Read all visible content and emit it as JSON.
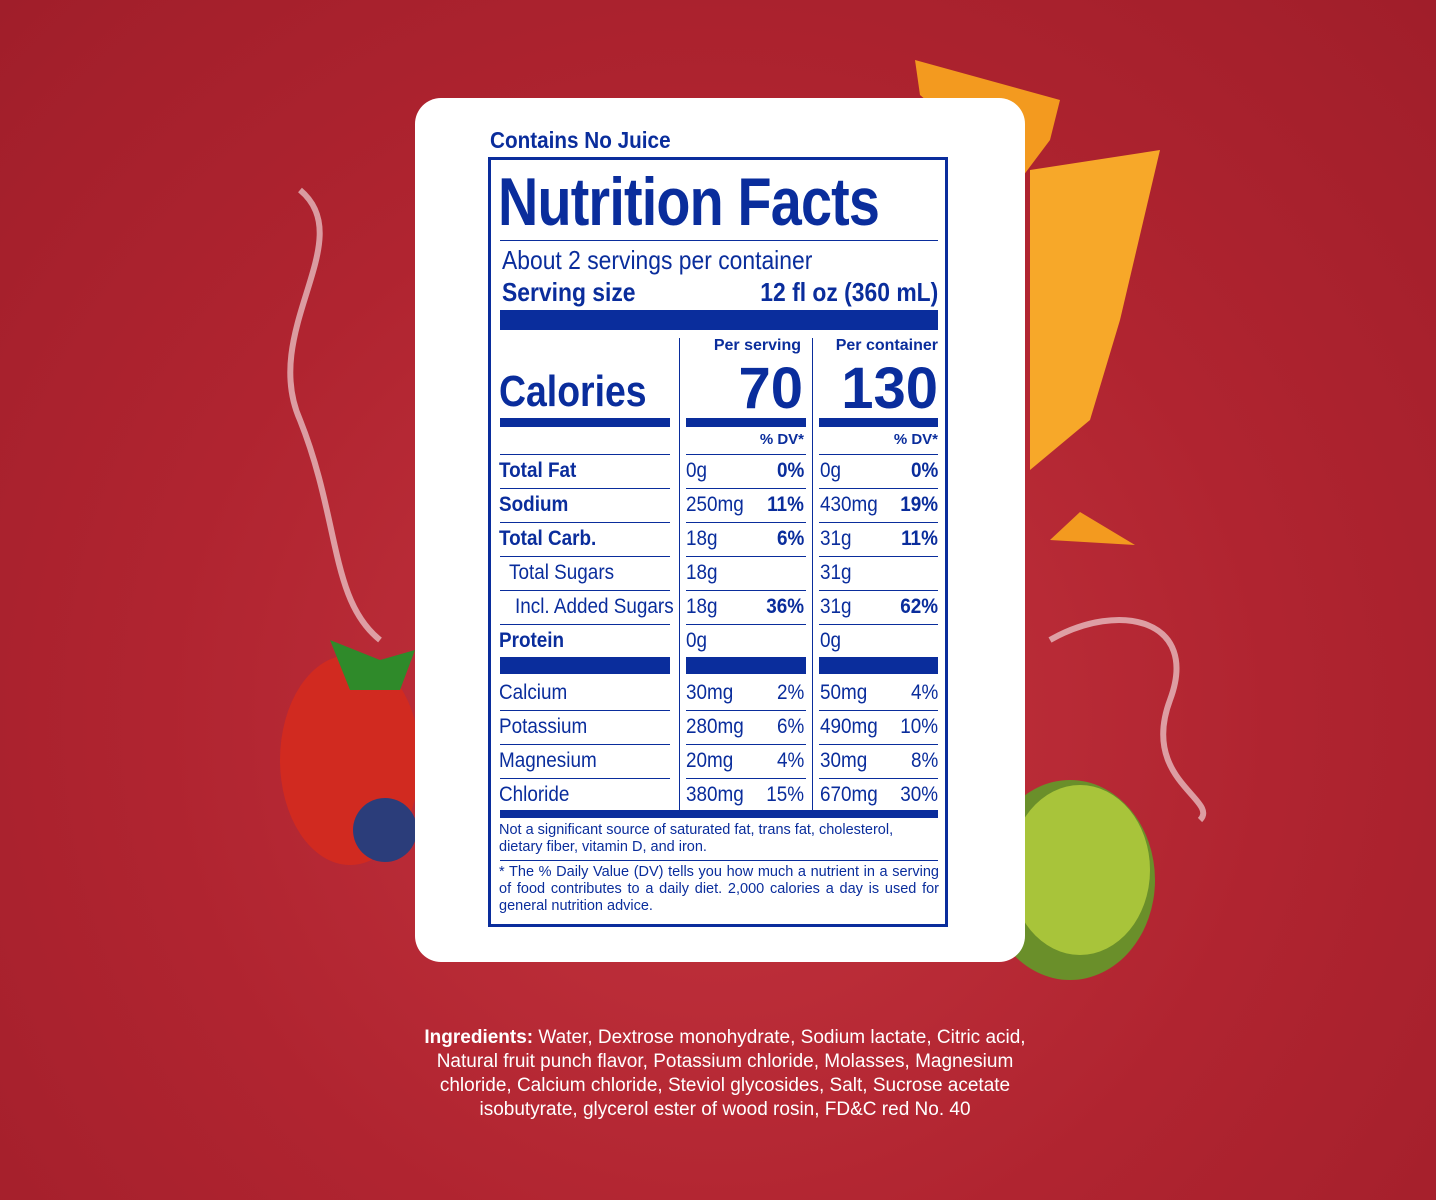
{
  "label": {
    "juice_note": "Contains No Juice",
    "title": "Nutrition Facts",
    "servings": "About 2 servings per container",
    "serving_size_label": "Serving size",
    "serving_size": "12 fl oz (360 mL)",
    "per_serving": "Per serving",
    "per_container": "Per container",
    "calories_label": "Calories",
    "calories_serving": "70",
    "calories_container": "130",
    "dv_header": "% DV*",
    "nutrients": [
      {
        "name": "Total Fat",
        "serving_amount": "0g",
        "serving_dv": "0%",
        "container_amount": "0g",
        "container_dv": "0%"
      },
      {
        "name": "Sodium",
        "serving_amount": "250mg",
        "serving_dv": "11%",
        "container_amount": "430mg",
        "container_dv": "19%"
      },
      {
        "name": "Total Carb.",
        "serving_amount": "18g",
        "serving_dv": "6%",
        "container_amount": "31g",
        "container_dv": "11%"
      },
      {
        "name": "Total Sugars",
        "serving_amount": "18g",
        "serving_dv": null,
        "container_amount": "31g",
        "container_dv": null
      },
      {
        "name": "Incl. Added Sugars",
        "serving_amount": "18g",
        "serving_dv": "36%",
        "container_amount": "31g",
        "container_dv": "62%"
      },
      {
        "name": "Protein",
        "serving_amount": "0g",
        "serving_dv": null,
        "container_amount": "0g",
        "container_dv": null
      }
    ],
    "minerals": [
      {
        "name": "Calcium",
        "serving_amount": "30mg",
        "serving_dv": "2%",
        "container_amount": "50mg",
        "container_dv": "4%"
      },
      {
        "name": "Potassium",
        "serving_amount": "280mg",
        "serving_dv": "6%",
        "container_amount": "490mg",
        "container_dv": "10%"
      },
      {
        "name": "Magnesium",
        "serving_amount": "20mg",
        "serving_dv": "4%",
        "container_amount": "30mg",
        "container_dv": "8%"
      },
      {
        "name": "Chloride",
        "serving_amount": "380mg",
        "serving_dv": "15%",
        "container_amount": "670mg",
        "container_dv": "30%"
      }
    ],
    "footnote_1": "Not a significant source of saturated fat, trans fat, cholesterol, dietary fiber, vitamin D, and iron.",
    "footnote_2": "* The % Daily Value (DV) tells you how much a nutrient in a serving of food contributes to a daily diet. 2,000 calories a day is used for general nutrition advice."
  },
  "ingredients": {
    "label": "Ingredients:",
    "text": "Water, Dextrose monohydrate, Sodium lactate, Citric acid, Natural fruit punch flavor, Potassium chloride, Molasses, Magnesium chloride, Calcium chloride, Steviol glycosides, Salt, Sucrose acetate isobutyrate, glycerol ester of wood rosin, FD&C red No. 40"
  }
}
